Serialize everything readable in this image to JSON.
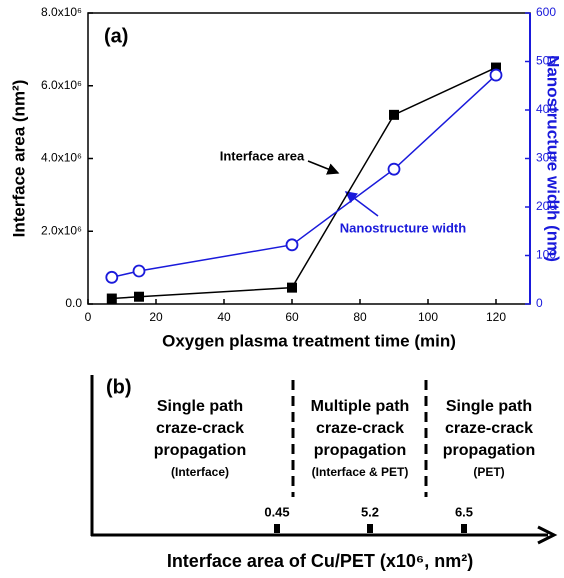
{
  "chart_data": [
    {
      "type": "line",
      "panel_label": "(a)",
      "x_label": "Oxygen plasma treatment time (min)",
      "y_label": "Interface area (nm²)",
      "y2_label": "Nanostructure width (nm)",
      "x": [
        7,
        15,
        60,
        90,
        120
      ],
      "xlim": [
        0,
        130
      ],
      "xticks": [
        0,
        20,
        40,
        60,
        80,
        100,
        120
      ],
      "ylim": [
        0,
        8000000
      ],
      "yticks": [
        {
          "value": 0,
          "label": "0.0"
        },
        {
          "value": 2000000,
          "label": "2.0x10⁶"
        },
        {
          "value": 4000000,
          "label": "4.0x10⁶"
        },
        {
          "value": 6000000,
          "label": "6.0x10⁶"
        },
        {
          "value": 8000000,
          "label": "8.0x10⁶"
        }
      ],
      "y2lim": [
        0,
        600
      ],
      "y2ticks": [
        0,
        100,
        200,
        300,
        400,
        500,
        600
      ],
      "y2_color": "#1a1adb",
      "series": [
        {
          "name": "Interface area",
          "color": "#000000",
          "marker": "square",
          "values": [
            150000,
            200000,
            450000,
            5200000,
            6500000
          ]
        },
        {
          "name": "Nanostructure width",
          "color": "#1a1adb",
          "marker": "circle",
          "axis": "y2",
          "values": [
            55,
            68,
            122,
            278,
            472
          ]
        }
      ]
    },
    {
      "type": "regions",
      "panel_label": "(b)",
      "x_label": "Interface area of Cu/PET (x10⁶, nm²)",
      "markers": [
        0.45,
        5.2,
        6.5
      ],
      "regions": [
        {
          "lines": [
            "Single path",
            "craze-crack",
            "propagation"
          ],
          "note": "(Interface)"
        },
        {
          "lines": [
            "Multiple path",
            "craze-crack",
            "propagation"
          ],
          "note": "(Interface & PET)"
        },
        {
          "lines": [
            "Single path",
            "craze-crack",
            "propagation"
          ],
          "note": "(PET)"
        }
      ]
    }
  ]
}
